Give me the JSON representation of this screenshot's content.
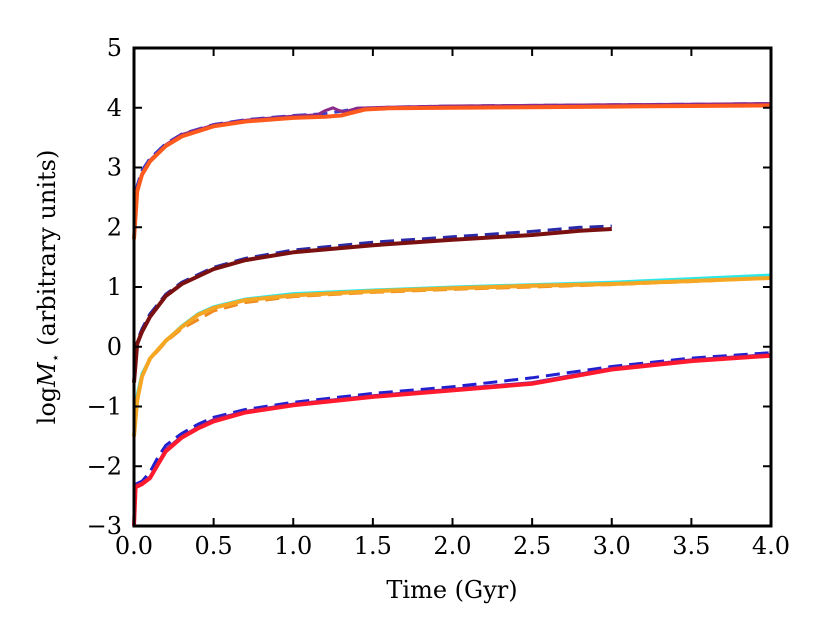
{
  "chart_data": {
    "type": "line",
    "title": "",
    "xlabel": "Time (Gyr)",
    "ylabel_parts": {
      "log": "log",
      "M": "M",
      "star": "⋆",
      "rest": " (arbitrary units)"
    },
    "xlim": [
      0.0,
      4.0
    ],
    "ylim": [
      -3,
      5
    ],
    "xticks": [
      0.0,
      0.5,
      1.0,
      1.5,
      2.0,
      2.5,
      3.0,
      3.5,
      4.0
    ],
    "xtick_labels": [
      "0.0",
      "0.5",
      "1.0",
      "1.5",
      "2.0",
      "2.5",
      "3.0",
      "3.5",
      "4.0"
    ],
    "yticks": [
      -3,
      -2,
      -1,
      0,
      1,
      2,
      3,
      4,
      5
    ],
    "ytick_labels": [
      "−3",
      "−2",
      "−1",
      "0",
      "1",
      "2",
      "3",
      "4",
      "5"
    ],
    "grid": false,
    "series": [
      {
        "name": "top-dashed",
        "color": "#3a3acc",
        "dashed": true,
        "width": 3,
        "x": [
          0.0,
          0.02,
          0.05,
          0.1,
          0.2,
          0.3,
          0.5,
          0.7,
          1.0,
          1.2,
          1.3,
          1.4,
          1.6,
          2.0,
          2.5,
          3.0,
          3.5,
          4.0
        ],
        "y": [
          1.9,
          2.7,
          2.95,
          3.15,
          3.4,
          3.56,
          3.72,
          3.8,
          3.87,
          3.9,
          3.94,
          3.99,
          4.01,
          4.03,
          4.04,
          4.05,
          4.06,
          4.07
        ]
      },
      {
        "name": "top-purple",
        "color": "#8a2a8a",
        "dashed": false,
        "width": 3,
        "x": [
          0.0,
          0.02,
          0.05,
          0.1,
          0.2,
          0.3,
          0.5,
          0.7,
          1.0,
          1.15,
          1.2,
          1.25,
          1.28,
          1.32,
          1.4,
          1.6,
          2.0,
          2.5,
          3.0,
          3.5,
          4.0
        ],
        "y": [
          1.85,
          2.65,
          2.9,
          3.12,
          3.38,
          3.55,
          3.71,
          3.79,
          3.86,
          3.88,
          3.95,
          4.0,
          3.96,
          3.93,
          3.99,
          4.01,
          4.03,
          4.04,
          4.05,
          4.06,
          4.07
        ]
      },
      {
        "name": "top-orange",
        "color": "#ff5a1e",
        "dashed": false,
        "width": 4,
        "x": [
          0.0,
          0.02,
          0.05,
          0.1,
          0.2,
          0.3,
          0.5,
          0.7,
          1.0,
          1.2,
          1.3,
          1.45,
          1.6,
          2.0,
          2.5,
          3.0,
          3.5,
          4.0
        ],
        "y": [
          1.8,
          2.6,
          2.88,
          3.1,
          3.36,
          3.52,
          3.69,
          3.77,
          3.83,
          3.85,
          3.87,
          3.97,
          3.99,
          4.0,
          4.01,
          4.02,
          4.03,
          4.04
        ]
      },
      {
        "name": "second-dashed",
        "color": "#2a2aa8",
        "dashed": true,
        "width": 3,
        "x": [
          0.0,
          0.02,
          0.05,
          0.1,
          0.2,
          0.3,
          0.5,
          0.7,
          1.0,
          1.5,
          2.0,
          2.5,
          2.8,
          3.0
        ],
        "y": [
          -0.5,
          0.1,
          0.3,
          0.55,
          0.88,
          1.08,
          1.33,
          1.48,
          1.62,
          1.75,
          1.84,
          1.93,
          2.0,
          2.02
        ]
      },
      {
        "name": "second-darkred",
        "color": "#7a1010",
        "dashed": false,
        "width": 4,
        "x": [
          0.0,
          0.02,
          0.05,
          0.1,
          0.2,
          0.3,
          0.5,
          0.7,
          1.0,
          1.5,
          2.0,
          2.5,
          2.8,
          3.0
        ],
        "y": [
          -0.6,
          0.05,
          0.25,
          0.5,
          0.85,
          1.05,
          1.3,
          1.45,
          1.58,
          1.7,
          1.79,
          1.87,
          1.94,
          1.97
        ]
      },
      {
        "name": "third-cyan",
        "color": "#2ee8e8",
        "dashed": false,
        "width": 3,
        "x": [
          0.0,
          0.02,
          0.05,
          0.1,
          0.2,
          0.3,
          0.4,
          0.5,
          0.7,
          1.0,
          1.5,
          2.0,
          2.5,
          3.0,
          3.5,
          4.0
        ],
        "y": [
          -1.4,
          -0.8,
          -0.45,
          -0.2,
          0.1,
          0.35,
          0.55,
          0.67,
          0.8,
          0.89,
          0.95,
          1.0,
          1.04,
          1.08,
          1.14,
          1.2
        ]
      },
      {
        "name": "third-orange-dashed",
        "color": "#ee8a20",
        "dashed": true,
        "width": 3,
        "x": [
          0.0,
          0.02,
          0.05,
          0.1,
          0.2,
          0.3,
          0.4,
          0.5,
          0.7,
          1.0,
          1.5,
          2.0,
          2.5,
          3.0,
          3.5,
          4.0
        ],
        "y": [
          -1.45,
          -0.85,
          -0.5,
          -0.22,
          0.08,
          0.3,
          0.45,
          0.6,
          0.74,
          0.84,
          0.91,
          0.96,
          1.0,
          1.04,
          1.09,
          1.15
        ]
      },
      {
        "name": "third-orange",
        "color": "#f5a623",
        "dashed": false,
        "width": 4,
        "x": [
          0.0,
          0.02,
          0.05,
          0.1,
          0.2,
          0.3,
          0.4,
          0.5,
          0.7,
          1.0,
          1.5,
          2.0,
          2.5,
          3.0,
          3.5,
          4.0
        ],
        "y": [
          -1.5,
          -0.9,
          -0.5,
          -0.2,
          0.1,
          0.33,
          0.53,
          0.65,
          0.78,
          0.86,
          0.93,
          0.98,
          1.02,
          1.05,
          1.1,
          1.15
        ]
      },
      {
        "name": "bottom-dashed",
        "color": "#2020d0",
        "dashed": true,
        "width": 3,
        "x": [
          0.0,
          0.01,
          0.05,
          0.1,
          0.15,
          0.2,
          0.3,
          0.4,
          0.5,
          0.7,
          1.0,
          1.5,
          2.0,
          2.5,
          3.0,
          3.5,
          4.0
        ],
        "y": [
          -3.0,
          -2.3,
          -2.25,
          -2.1,
          -1.85,
          -1.65,
          -1.45,
          -1.3,
          -1.18,
          -1.05,
          -0.93,
          -0.78,
          -0.67,
          -0.52,
          -0.33,
          -0.19,
          -0.1
        ]
      },
      {
        "name": "bottom-purple",
        "color": "#8a2090",
        "dashed": false,
        "width": 3,
        "x": [
          0.0,
          0.01,
          0.05,
          0.1,
          0.15,
          0.2,
          0.3,
          0.4,
          0.5,
          0.7,
          1.0,
          1.5,
          2.0,
          2.5,
          3.0,
          3.5,
          4.0
        ],
        "y": [
          -3.0,
          -2.32,
          -2.28,
          -2.18,
          -1.95,
          -1.72,
          -1.5,
          -1.35,
          -1.22,
          -1.08,
          -0.96,
          -0.82,
          -0.71,
          -0.6,
          -0.36,
          -0.22,
          -0.13
        ]
      },
      {
        "name": "bottom-red",
        "color": "#ff1a2e",
        "dashed": false,
        "width": 4,
        "x": [
          0.0,
          0.01,
          0.05,
          0.1,
          0.15,
          0.2,
          0.3,
          0.4,
          0.5,
          0.7,
          1.0,
          1.5,
          2.0,
          2.5,
          3.0,
          3.5,
          4.0
        ],
        "y": [
          -3.0,
          -2.35,
          -2.3,
          -2.2,
          -1.97,
          -1.75,
          -1.52,
          -1.37,
          -1.25,
          -1.1,
          -0.98,
          -0.84,
          -0.73,
          -0.62,
          -0.38,
          -0.24,
          -0.15
        ]
      }
    ]
  }
}
